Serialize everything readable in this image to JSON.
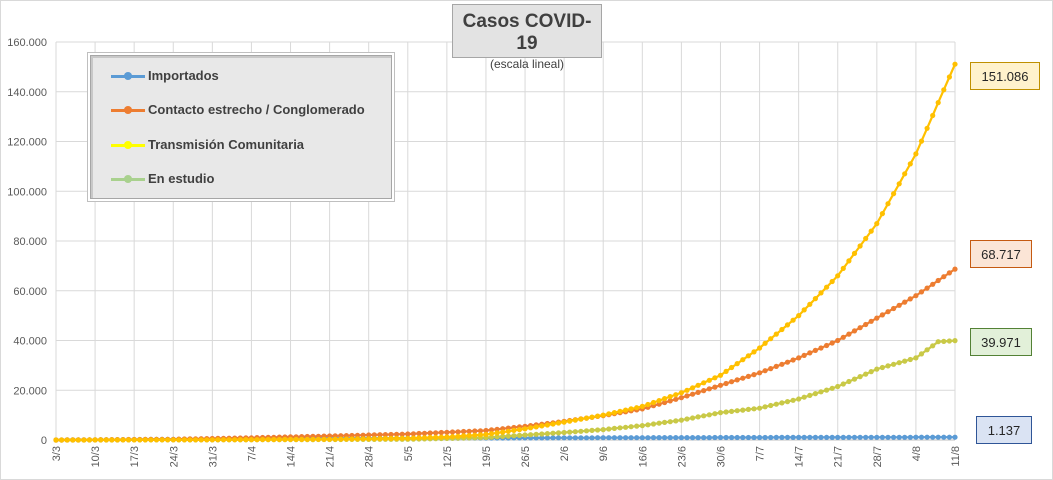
{
  "chart_data": {
    "type": "line",
    "title": "Casos COVID-19",
    "subtitle": "(escala lineal)",
    "xlabel": "",
    "ylabel": "",
    "ylim": [
      0,
      160000
    ],
    "yticks": [
      0,
      20000,
      40000,
      60000,
      80000,
      100000,
      120000,
      140000,
      160000
    ],
    "ytick_labels": [
      "0",
      "20.000",
      "40.000",
      "60.000",
      "80.000",
      "100.000",
      "120.000",
      "140.000",
      "160.000"
    ],
    "x_start": "3/3",
    "x_end": "11/8",
    "xtick_labels": [
      "3/3",
      "10/3",
      "17/3",
      "24/3",
      "31/3",
      "7/4",
      "14/4",
      "21/4",
      "28/4",
      "5/5",
      "12/5",
      "19/5",
      "26/5",
      "2/6",
      "9/6",
      "16/6",
      "23/6",
      "30/6",
      "7/7",
      "14/7",
      "21/7",
      "28/7",
      "4/8",
      "11/8"
    ],
    "grid": true,
    "legend_position": "top-left",
    "series": [
      {
        "name": "Importados",
        "color": "#5b9bd5",
        "end_label": "1.137",
        "label_fill": "#dae3f3",
        "label_border": "#2f5597",
        "points": [
          [
            "3/3",
            0
          ],
          [
            "31/3",
            380
          ],
          [
            "21/4",
            700
          ],
          [
            "19/5",
            800
          ],
          [
            "2/6",
            880
          ],
          [
            "16/6",
            940
          ],
          [
            "30/6",
            990
          ],
          [
            "14/7",
            1040
          ],
          [
            "28/7",
            1080
          ],
          [
            "11/8",
            1137
          ]
        ]
      },
      {
        "name": "Contacto estrecho / Conglomerado",
        "color": "#ed7d31",
        "end_label": "68.717",
        "label_fill": "#fbe5d6",
        "label_border": "#c55a11",
        "points": [
          [
            "3/3",
            0
          ],
          [
            "24/3",
            300
          ],
          [
            "7/4",
            900
          ],
          [
            "21/4",
            1600
          ],
          [
            "5/5",
            2400
          ],
          [
            "19/5",
            3800
          ],
          [
            "26/5",
            5500
          ],
          [
            "2/6",
            7500
          ],
          [
            "9/6",
            9800
          ],
          [
            "16/6",
            12500
          ],
          [
            "23/6",
            17000
          ],
          [
            "30/6",
            22000
          ],
          [
            "7/7",
            27000
          ],
          [
            "14/7",
            33000
          ],
          [
            "21/7",
            40000
          ],
          [
            "28/7",
            49000
          ],
          [
            "4/8",
            58000
          ],
          [
            "11/8",
            68717
          ]
        ]
      },
      {
        "name": "Transmisión Comunitaria",
        "color": "#ffc000",
        "legend_color": "#ffff00",
        "end_label": "151.086",
        "label_fill": "#fff2cc",
        "label_border": "#bf9000",
        "points": [
          [
            "3/3",
            0
          ],
          [
            "31/3",
            100
          ],
          [
            "21/4",
            300
          ],
          [
            "5/5",
            700
          ],
          [
            "12/5",
            1200
          ],
          [
            "19/5",
            2200
          ],
          [
            "26/5",
            4500
          ],
          [
            "2/6",
            7200
          ],
          [
            "9/6",
            10000
          ],
          [
            "16/6",
            13500
          ],
          [
            "23/6",
            19000
          ],
          [
            "30/6",
            26000
          ],
          [
            "7/7",
            37000
          ],
          [
            "14/7",
            50000
          ],
          [
            "21/7",
            66000
          ],
          [
            "28/7",
            87000
          ],
          [
            "4/8",
            115000
          ],
          [
            "11/8",
            151086
          ]
        ]
      },
      {
        "name": "En estudio",
        "color": "#c9c947",
        "legend_color": "#a9d18e",
        "end_label": "39.971",
        "label_fill": "#e2f0d9",
        "label_border": "#538135",
        "points": [
          [
            "3/3",
            0
          ],
          [
            "31/3",
            50
          ],
          [
            "5/5",
            300
          ],
          [
            "19/5",
            1000
          ],
          [
            "26/5",
            2000
          ],
          [
            "2/6",
            3000
          ],
          [
            "9/6",
            4200
          ],
          [
            "16/6",
            5800
          ],
          [
            "23/6",
            8000
          ],
          [
            "30/6",
            11000
          ],
          [
            "7/7",
            12800
          ],
          [
            "14/7",
            16500
          ],
          [
            "21/7",
            21500
          ],
          [
            "28/7",
            28500
          ],
          [
            "4/8",
            33000
          ],
          [
            "8/8",
            39500
          ],
          [
            "11/8",
            39971
          ]
        ]
      }
    ]
  }
}
